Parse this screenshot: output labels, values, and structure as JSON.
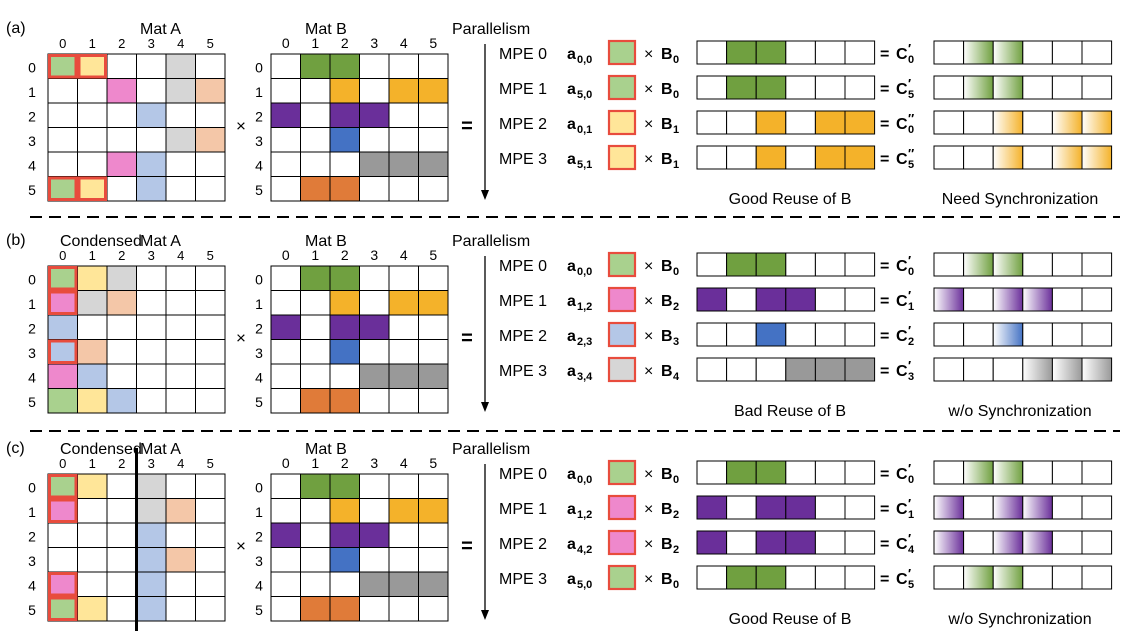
{
  "colors": {
    "green": "#a9d18e",
    "green_dark": "#70a040",
    "yellow": "#ffe699",
    "gold": "#f4b22a",
    "pink": "#ee88cc",
    "gray_light": "#d6d6d6",
    "gray_dark": "#999999",
    "peach": "#f4c7a8",
    "blue_light": "#b4c7e7",
    "blue": "#4472c4",
    "purple": "#6a2f9a",
    "orange": "#e07b39",
    "highlight": "#e84c3d",
    "caption_red": "#e84c3d"
  },
  "col_indices": [
    "0",
    "1",
    "2",
    "3",
    "4",
    "5"
  ],
  "row_indices": [
    "0",
    "1",
    "2",
    "3",
    "4",
    "5"
  ],
  "mat_b": {
    "title": "Mat B",
    "cells": [
      [
        "",
        "g",
        "g",
        "",
        "",
        ""
      ],
      [
        "",
        "",
        "y",
        "",
        "y",
        "y"
      ],
      [
        "p",
        "",
        "p",
        "p",
        "",
        ""
      ],
      [
        "",
        "",
        "b",
        "",
        "",
        ""
      ],
      [
        "",
        "",
        "",
        "d",
        "d",
        "d"
      ],
      [
        "",
        "o",
        "o",
        "",
        "",
        ""
      ]
    ]
  },
  "ops": {
    "times": "×",
    "equals": "="
  },
  "panels": [
    {
      "label": "(a)",
      "mat_a_title_prefix": "",
      "mat_a_title": "Mat A",
      "mat_a_cells": [
        [
          "G",
          "Y",
          "",
          "",
          "l",
          ""
        ],
        [
          "",
          "",
          "k",
          "",
          "l",
          "p"
        ],
        [
          "",
          "",
          "",
          "a",
          "",
          ""
        ],
        [
          "",
          "",
          "",
          "",
          "l",
          "p"
        ],
        [
          "",
          "",
          "k",
          "a",
          "",
          ""
        ],
        [
          "G",
          "Y",
          "",
          "a",
          "",
          ""
        ]
      ],
      "red_cells": [
        [
          0,
          0
        ],
        [
          0,
          1
        ],
        [
          5,
          0
        ],
        [
          5,
          1
        ]
      ],
      "divider_after_col": null,
      "parallelism": "Parallelism",
      "rows": [
        {
          "mpe": "MPE 0",
          "a": "a",
          "a_sub": "0,0",
          "a_color": "G",
          "b": "B",
          "b_sub": "0",
          "brow": 0,
          "c": "C",
          "c_prime": "′",
          "c_sub": "0"
        },
        {
          "mpe": "MPE 1",
          "a": "a",
          "a_sub": "5,0",
          "a_color": "G",
          "b": "B",
          "b_sub": "0",
          "brow": 0,
          "c": "C",
          "c_prime": "′",
          "c_sub": "5"
        },
        {
          "mpe": "MPE 2",
          "a": "a",
          "a_sub": "0,1",
          "a_color": "Y",
          "b": "B",
          "b_sub": "1",
          "brow": 1,
          "c": "C",
          "c_prime": "″",
          "c_sub": "0"
        },
        {
          "mpe": "MPE 3",
          "a": "a",
          "a_sub": "5,1",
          "a_color": "Y",
          "b": "B",
          "b_sub": "1",
          "brow": 1,
          "c": "C",
          "c_prime": "″",
          "c_sub": "5"
        }
      ],
      "caption_left": "Good Reuse of B",
      "caption_right": "Need Synchronization",
      "caption_red": false
    },
    {
      "label": "(b)",
      "mat_a_title_prefix": "Condensed",
      "mat_a_title": "Mat A",
      "mat_a_cells": [
        [
          "G",
          "Y",
          "l",
          "",
          "",
          ""
        ],
        [
          "k",
          "l",
          "p",
          "",
          "",
          ""
        ],
        [
          "a",
          "",
          "",
          "",
          "",
          ""
        ],
        [
          "a",
          "p",
          "",
          "",
          "",
          ""
        ],
        [
          "k",
          "a",
          "",
          "",
          "",
          ""
        ],
        [
          "G",
          "Y",
          "a",
          "",
          "",
          ""
        ]
      ],
      "red_cells": [
        [
          0,
          0
        ],
        [
          1,
          0
        ],
        [
          3,
          0
        ]
      ],
      "divider_after_col": null,
      "parallelism": "Parallelism",
      "rows": [
        {
          "mpe": "MPE 0",
          "a": "a",
          "a_sub": "0,0",
          "a_color": "G",
          "b": "B",
          "b_sub": "0",
          "brow": 0,
          "c": "C",
          "c_prime": "′",
          "c_sub": "0"
        },
        {
          "mpe": "MPE 1",
          "a": "a",
          "a_sub": "1,2",
          "a_color": "k",
          "b": "B",
          "b_sub": "2",
          "brow": 2,
          "c": "C",
          "c_prime": "′",
          "c_sub": "1"
        },
        {
          "mpe": "MPE 2",
          "a": "a",
          "a_sub": "2,3",
          "a_color": "a",
          "b": "B",
          "b_sub": "3",
          "brow": 3,
          "c": "C",
          "c_prime": "′",
          "c_sub": "2"
        },
        {
          "mpe": "MPE 3",
          "a": "a",
          "a_sub": "3,4",
          "a_color": "l",
          "b": "B",
          "b_sub": "4",
          "brow": 4,
          "c": "C",
          "c_prime": "′",
          "c_sub": "3"
        }
      ],
      "caption_left": "Bad Reuse of B",
      "caption_right": "w/o Synchronization",
      "caption_red": false
    },
    {
      "label": "(c)",
      "mat_a_title_prefix": "Condensed",
      "mat_a_title": "Mat A",
      "mat_a_cells": [
        [
          "G",
          "Y",
          "",
          "l",
          "",
          ""
        ],
        [
          "k",
          "",
          "",
          "l",
          "p",
          ""
        ],
        [
          "",
          "",
          "",
          "a",
          "",
          ""
        ],
        [
          "",
          "",
          "",
          "a",
          "p",
          ""
        ],
        [
          "k",
          "",
          "",
          "a",
          "",
          ""
        ],
        [
          "G",
          "Y",
          "",
          "a",
          "",
          ""
        ]
      ],
      "red_cells": [
        [
          0,
          0
        ],
        [
          1,
          0
        ],
        [
          4,
          0
        ],
        [
          5,
          0
        ]
      ],
      "divider_after_col": 2,
      "parallelism": "Parallelism",
      "rows": [
        {
          "mpe": "MPE 0",
          "a": "a",
          "a_sub": "0,0",
          "a_color": "G",
          "b": "B",
          "b_sub": "0",
          "brow": 0,
          "c": "C",
          "c_prime": "′",
          "c_sub": "0"
        },
        {
          "mpe": "MPE 1",
          "a": "a",
          "a_sub": "1,2",
          "a_color": "k",
          "b": "B",
          "b_sub": "2",
          "brow": 2,
          "c": "C",
          "c_prime": "′",
          "c_sub": "1"
        },
        {
          "mpe": "MPE 2",
          "a": "a",
          "a_sub": "4,2",
          "a_color": "k",
          "b": "B",
          "b_sub": "2",
          "brow": 2,
          "c": "C",
          "c_prime": "′",
          "c_sub": "4"
        },
        {
          "mpe": "MPE 3",
          "a": "a",
          "a_sub": "5,0",
          "a_color": "G",
          "b": "B",
          "b_sub": "0",
          "brow": 0,
          "c": "C",
          "c_prime": "′",
          "c_sub": "5"
        }
      ],
      "caption_left": "Good Reuse of B",
      "caption_right": "w/o Synchronization",
      "caption_red": true
    }
  ]
}
